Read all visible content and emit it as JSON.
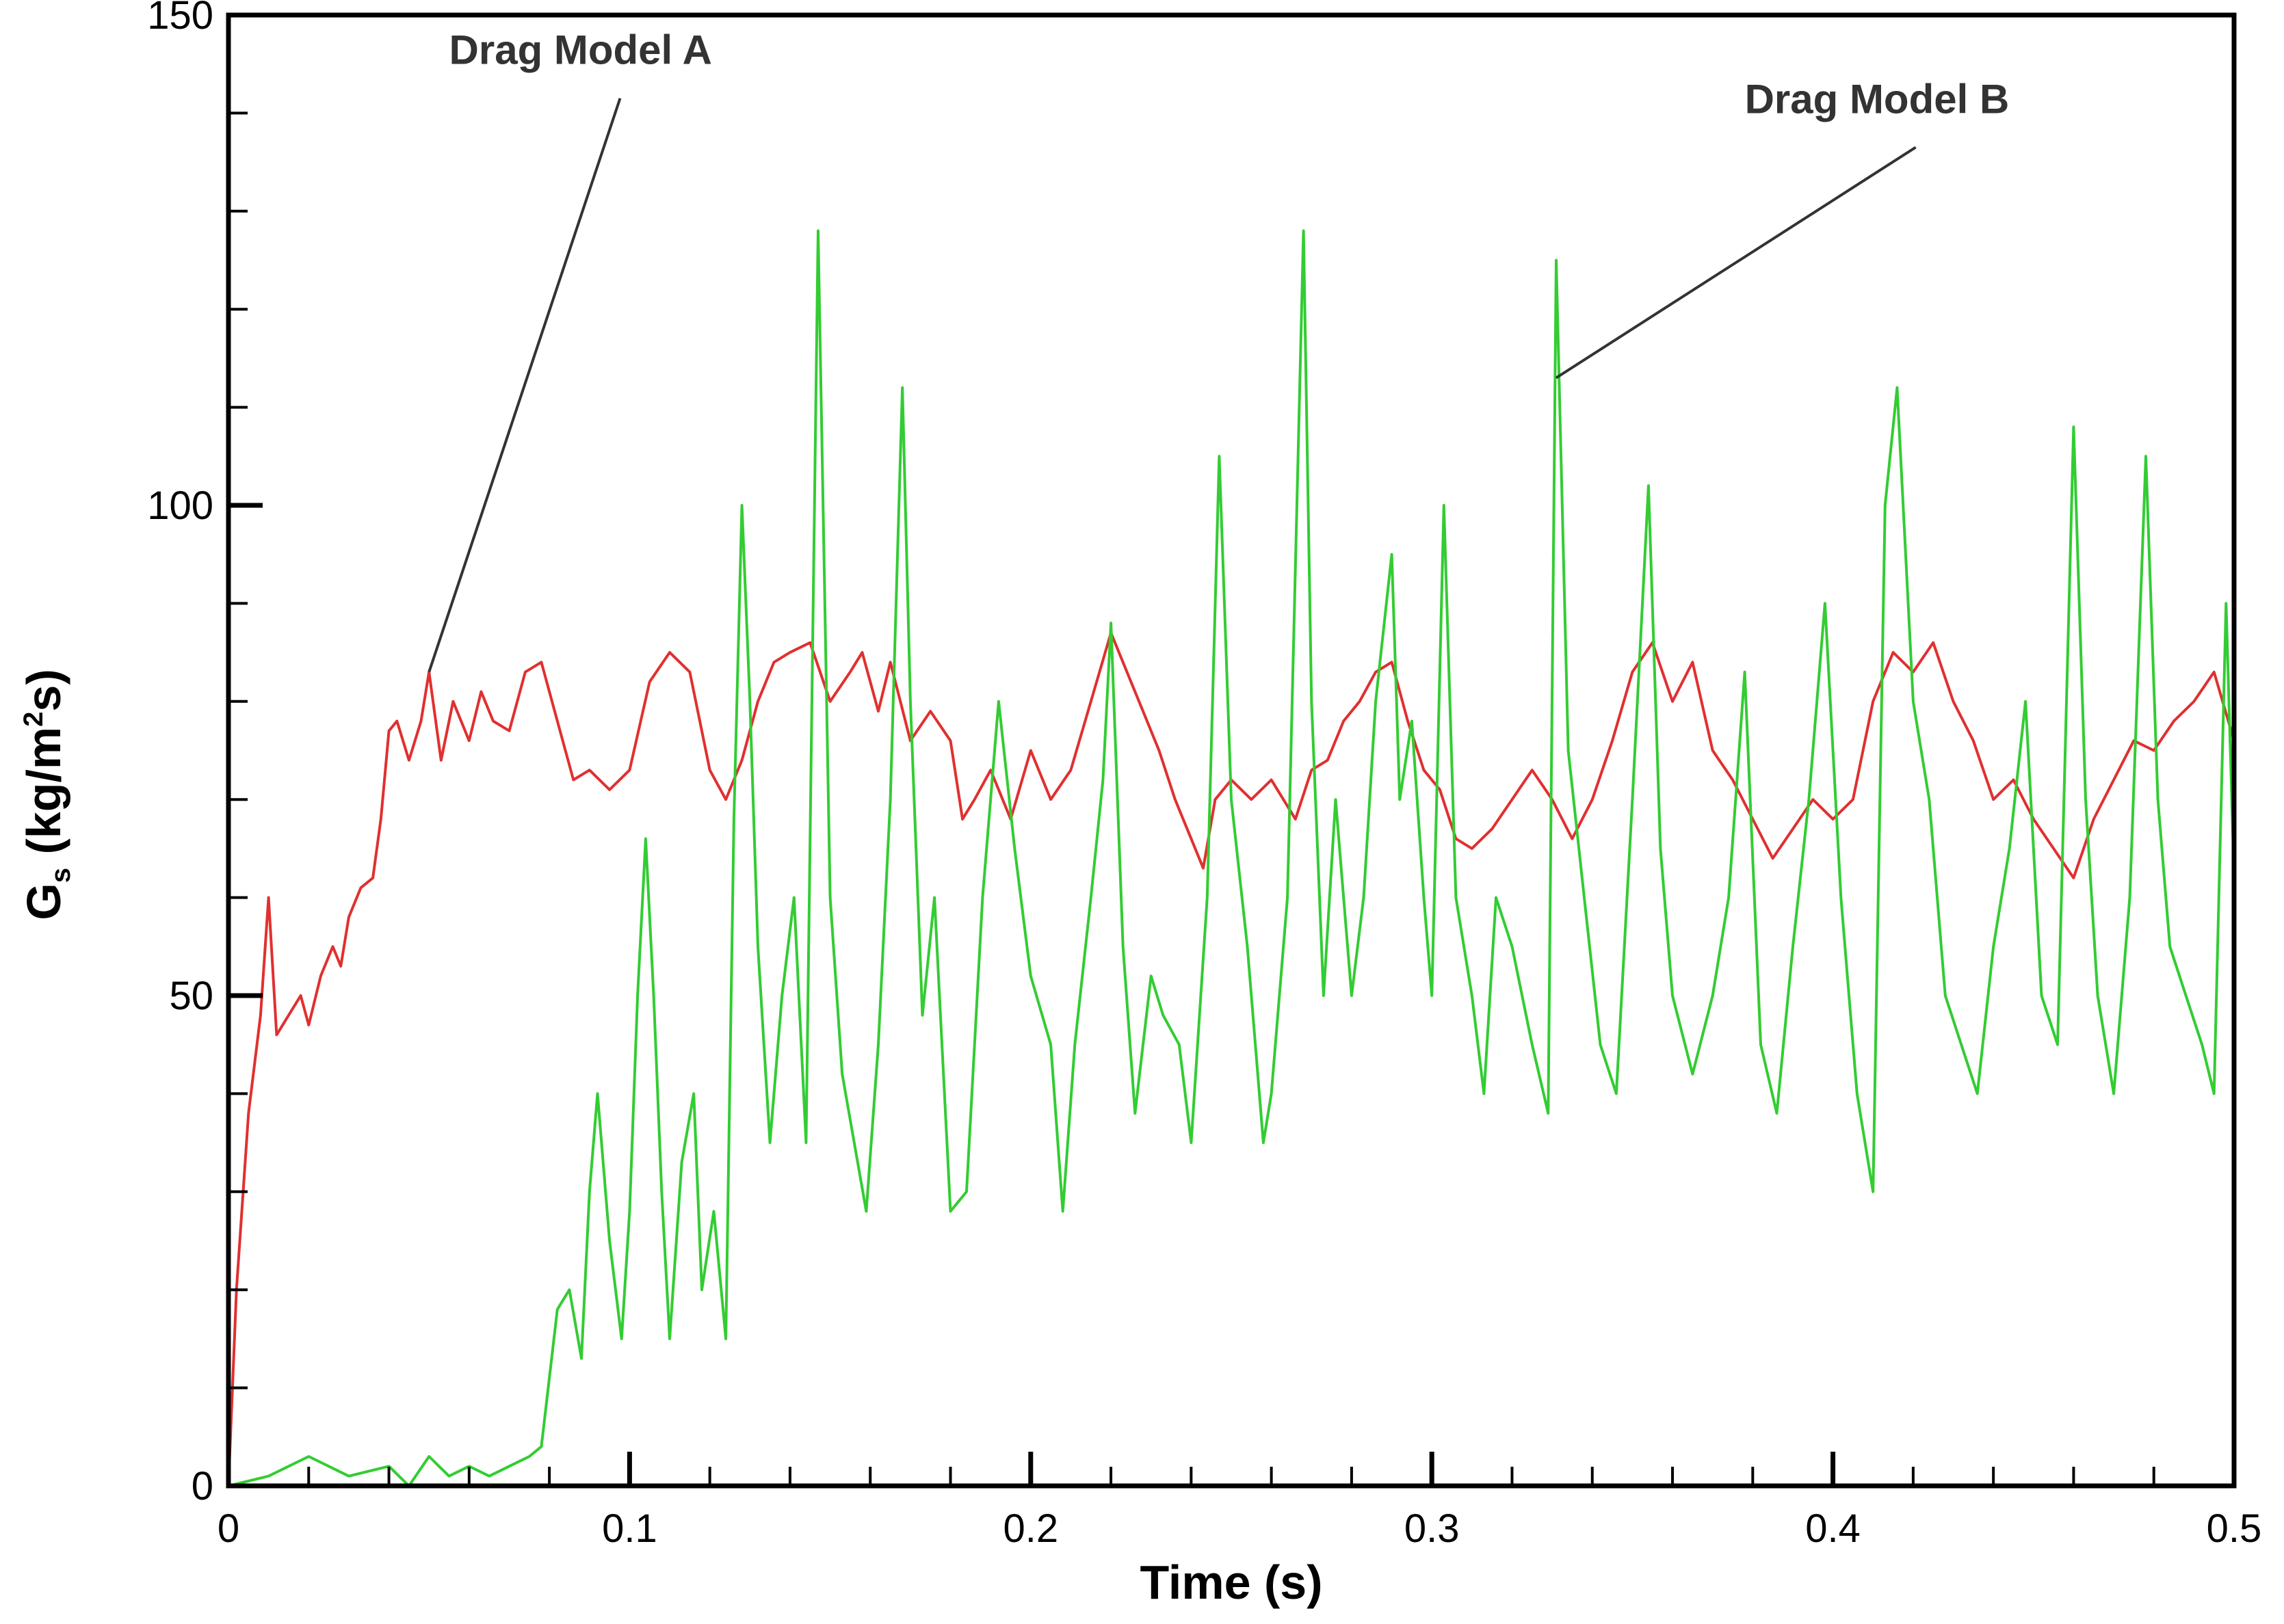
{
  "chart_data": {
    "type": "line",
    "title": "",
    "xlabel": "Time (s)",
    "ylabel": {
      "main": "G",
      "sub": "s",
      "pre": " (kg/m",
      "sup": "2",
      "post": "s)"
    },
    "xlim": [
      0,
      0.5
    ],
    "ylim": [
      0,
      150
    ],
    "x_major_ticks": [
      0,
      0.1,
      0.2,
      0.3,
      0.4,
      0.5
    ],
    "x_tick_labels": [
      "0",
      "0.1",
      "0.2",
      "0.3",
      "0.4",
      "0.5"
    ],
    "x_minor_step": 0.02,
    "y_major_ticks": [
      0,
      50,
      100,
      150
    ],
    "y_tick_labels": [
      "0",
      "50",
      "100",
      "150"
    ],
    "y_minor_step": 10,
    "grid": false,
    "series": [
      {
        "name": "Drag Model A",
        "color": "#e03030",
        "points": [
          [
            0.0,
            0
          ],
          [
            0.002,
            20
          ],
          [
            0.005,
            38
          ],
          [
            0.008,
            48
          ],
          [
            0.01,
            60
          ],
          [
            0.012,
            46
          ],
          [
            0.015,
            48
          ],
          [
            0.018,
            50
          ],
          [
            0.02,
            47
          ],
          [
            0.023,
            52
          ],
          [
            0.026,
            55
          ],
          [
            0.028,
            53
          ],
          [
            0.03,
            58
          ],
          [
            0.033,
            61
          ],
          [
            0.036,
            62
          ],
          [
            0.038,
            68
          ],
          [
            0.04,
            77
          ],
          [
            0.042,
            78
          ],
          [
            0.045,
            74
          ],
          [
            0.048,
            78
          ],
          [
            0.05,
            83
          ],
          [
            0.053,
            74
          ],
          [
            0.056,
            80
          ],
          [
            0.06,
            76
          ],
          [
            0.063,
            81
          ],
          [
            0.066,
            78
          ],
          [
            0.07,
            77
          ],
          [
            0.074,
            83
          ],
          [
            0.078,
            84
          ],
          [
            0.082,
            78
          ],
          [
            0.086,
            72
          ],
          [
            0.09,
            73
          ],
          [
            0.095,
            71
          ],
          [
            0.1,
            73
          ],
          [
            0.105,
            82
          ],
          [
            0.11,
            85
          ],
          [
            0.115,
            83
          ],
          [
            0.12,
            73
          ],
          [
            0.124,
            70
          ],
          [
            0.128,
            74
          ],
          [
            0.132,
            80
          ],
          [
            0.136,
            84
          ],
          [
            0.14,
            85
          ],
          [
            0.145,
            86
          ],
          [
            0.15,
            80
          ],
          [
            0.155,
            83
          ],
          [
            0.158,
            85
          ],
          [
            0.162,
            79
          ],
          [
            0.165,
            84
          ],
          [
            0.17,
            76
          ],
          [
            0.175,
            79
          ],
          [
            0.18,
            76
          ],
          [
            0.183,
            68
          ],
          [
            0.186,
            70
          ],
          [
            0.19,
            73
          ],
          [
            0.195,
            68
          ],
          [
            0.2,
            75
          ],
          [
            0.205,
            70
          ],
          [
            0.21,
            73
          ],
          [
            0.215,
            80
          ],
          [
            0.22,
            87
          ],
          [
            0.225,
            82
          ],
          [
            0.228,
            79
          ],
          [
            0.232,
            75
          ],
          [
            0.236,
            70
          ],
          [
            0.24,
            66
          ],
          [
            0.243,
            63
          ],
          [
            0.246,
            70
          ],
          [
            0.25,
            72
          ],
          [
            0.255,
            70
          ],
          [
            0.26,
            72
          ],
          [
            0.263,
            70
          ],
          [
            0.266,
            68
          ],
          [
            0.27,
            73
          ],
          [
            0.274,
            74
          ],
          [
            0.278,
            78
          ],
          [
            0.282,
            80
          ],
          [
            0.286,
            83
          ],
          [
            0.29,
            84
          ],
          [
            0.294,
            78
          ],
          [
            0.298,
            73
          ],
          [
            0.302,
            71
          ],
          [
            0.306,
            66
          ],
          [
            0.31,
            65
          ],
          [
            0.315,
            67
          ],
          [
            0.32,
            70
          ],
          [
            0.325,
            73
          ],
          [
            0.33,
            70
          ],
          [
            0.335,
            66
          ],
          [
            0.34,
            70
          ],
          [
            0.345,
            76
          ],
          [
            0.35,
            83
          ],
          [
            0.355,
            86
          ],
          [
            0.36,
            80
          ],
          [
            0.365,
            84
          ],
          [
            0.37,
            75
          ],
          [
            0.375,
            72
          ],
          [
            0.38,
            68
          ],
          [
            0.385,
            64
          ],
          [
            0.39,
            67
          ],
          [
            0.395,
            70
          ],
          [
            0.4,
            68
          ],
          [
            0.405,
            70
          ],
          [
            0.41,
            80
          ],
          [
            0.415,
            85
          ],
          [
            0.42,
            83
          ],
          [
            0.425,
            86
          ],
          [
            0.43,
            80
          ],
          [
            0.435,
            76
          ],
          [
            0.44,
            70
          ],
          [
            0.445,
            72
          ],
          [
            0.45,
            68
          ],
          [
            0.455,
            65
          ],
          [
            0.46,
            62
          ],
          [
            0.465,
            68
          ],
          [
            0.47,
            72
          ],
          [
            0.475,
            76
          ],
          [
            0.48,
            75
          ],
          [
            0.485,
            78
          ],
          [
            0.49,
            80
          ],
          [
            0.495,
            83
          ],
          [
            0.5,
            76
          ]
        ]
      },
      {
        "name": "Drag Model B",
        "color": "#33cc33",
        "points": [
          [
            0.0,
            0
          ],
          [
            0.01,
            1
          ],
          [
            0.02,
            3
          ],
          [
            0.03,
            1
          ],
          [
            0.04,
            2
          ],
          [
            0.045,
            0
          ],
          [
            0.05,
            3
          ],
          [
            0.055,
            1
          ],
          [
            0.06,
            2
          ],
          [
            0.065,
            1
          ],
          [
            0.07,
            2
          ],
          [
            0.075,
            3
          ],
          [
            0.078,
            4
          ],
          [
            0.082,
            18
          ],
          [
            0.085,
            20
          ],
          [
            0.088,
            13
          ],
          [
            0.09,
            30
          ],
          [
            0.092,
            40
          ],
          [
            0.095,
            25
          ],
          [
            0.098,
            15
          ],
          [
            0.1,
            28
          ],
          [
            0.102,
            50
          ],
          [
            0.104,
            66
          ],
          [
            0.106,
            50
          ],
          [
            0.108,
            30
          ],
          [
            0.11,
            15
          ],
          [
            0.113,
            33
          ],
          [
            0.116,
            40
          ],
          [
            0.118,
            20
          ],
          [
            0.121,
            28
          ],
          [
            0.124,
            15
          ],
          [
            0.126,
            68
          ],
          [
            0.128,
            100
          ],
          [
            0.13,
            80
          ],
          [
            0.132,
            55
          ],
          [
            0.135,
            35
          ],
          [
            0.138,
            50
          ],
          [
            0.141,
            60
          ],
          [
            0.144,
            35
          ],
          [
            0.147,
            128
          ],
          [
            0.15,
            60
          ],
          [
            0.153,
            42
          ],
          [
            0.156,
            35
          ],
          [
            0.159,
            28
          ],
          [
            0.162,
            45
          ],
          [
            0.165,
            70
          ],
          [
            0.168,
            112
          ],
          [
            0.17,
            80
          ],
          [
            0.173,
            48
          ],
          [
            0.176,
            60
          ],
          [
            0.18,
            28
          ],
          [
            0.184,
            30
          ],
          [
            0.188,
            60
          ],
          [
            0.192,
            80
          ],
          [
            0.196,
            65
          ],
          [
            0.2,
            52
          ],
          [
            0.205,
            45
          ],
          [
            0.208,
            28
          ],
          [
            0.211,
            45
          ],
          [
            0.215,
            60
          ],
          [
            0.218,
            72
          ],
          [
            0.22,
            88
          ],
          [
            0.223,
            55
          ],
          [
            0.226,
            38
          ],
          [
            0.23,
            52
          ],
          [
            0.233,
            48
          ],
          [
            0.237,
            45
          ],
          [
            0.24,
            35
          ],
          [
            0.244,
            60
          ],
          [
            0.247,
            105
          ],
          [
            0.25,
            70
          ],
          [
            0.254,
            55
          ],
          [
            0.258,
            35
          ],
          [
            0.26,
            40
          ],
          [
            0.264,
            60
          ],
          [
            0.268,
            128
          ],
          [
            0.27,
            80
          ],
          [
            0.273,
            50
          ],
          [
            0.276,
            70
          ],
          [
            0.28,
            50
          ],
          [
            0.283,
            60
          ],
          [
            0.286,
            80
          ],
          [
            0.29,
            95
          ],
          [
            0.292,
            70
          ],
          [
            0.295,
            78
          ],
          [
            0.298,
            60
          ],
          [
            0.3,
            50
          ],
          [
            0.303,
            100
          ],
          [
            0.306,
            60
          ],
          [
            0.31,
            50
          ],
          [
            0.313,
            40
          ],
          [
            0.316,
            60
          ],
          [
            0.32,
            55
          ],
          [
            0.325,
            45
          ],
          [
            0.329,
            38
          ],
          [
            0.331,
            125
          ],
          [
            0.334,
            75
          ],
          [
            0.338,
            60
          ],
          [
            0.342,
            45
          ],
          [
            0.346,
            40
          ],
          [
            0.35,
            70
          ],
          [
            0.354,
            102
          ],
          [
            0.357,
            65
          ],
          [
            0.36,
            50
          ],
          [
            0.365,
            42
          ],
          [
            0.37,
            50
          ],
          [
            0.374,
            60
          ],
          [
            0.378,
            83
          ],
          [
            0.382,
            45
          ],
          [
            0.386,
            38
          ],
          [
            0.39,
            55
          ],
          [
            0.394,
            70
          ],
          [
            0.398,
            90
          ],
          [
            0.402,
            60
          ],
          [
            0.406,
            40
          ],
          [
            0.41,
            30
          ],
          [
            0.413,
            100
          ],
          [
            0.416,
            112
          ],
          [
            0.42,
            80
          ],
          [
            0.424,
            70
          ],
          [
            0.428,
            50
          ],
          [
            0.432,
            45
          ],
          [
            0.436,
            40
          ],
          [
            0.44,
            55
          ],
          [
            0.444,
            65
          ],
          [
            0.448,
            80
          ],
          [
            0.452,
            50
          ],
          [
            0.456,
            45
          ],
          [
            0.46,
            108
          ],
          [
            0.463,
            70
          ],
          [
            0.466,
            50
          ],
          [
            0.47,
            40
          ],
          [
            0.474,
            60
          ],
          [
            0.478,
            105
          ],
          [
            0.481,
            70
          ],
          [
            0.484,
            55
          ],
          [
            0.488,
            50
          ],
          [
            0.492,
            45
          ],
          [
            0.495,
            40
          ],
          [
            0.498,
            90
          ],
          [
            0.5,
            62
          ]
        ]
      }
    ],
    "annotations": [
      {
        "text": "Drag Model A",
        "series": "Drag Model A",
        "text_x": 0.055,
        "text_y": 145,
        "point_x": 0.05,
        "point_y": 83
      },
      {
        "text": "Drag Model B",
        "series": "Drag Model B",
        "text_x": 0.378,
        "text_y": 140,
        "point_x": 0.331,
        "point_y": 113
      }
    ]
  }
}
